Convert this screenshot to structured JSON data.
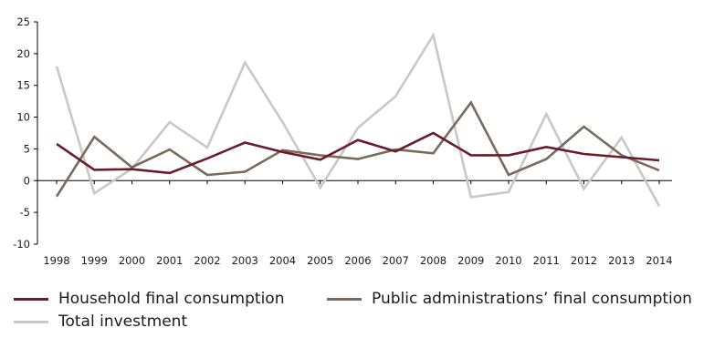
{
  "chart_data": {
    "type": "line",
    "x": [
      "1998",
      "1999",
      "2000",
      "2001",
      "2002",
      "2003",
      "2004",
      "2005",
      "2006",
      "2007",
      "2008",
      "2009",
      "2010",
      "2011",
      "2012",
      "2013",
      "2014"
    ],
    "ylim": [
      -10,
      25
    ],
    "yticks": [
      25,
      20,
      15,
      10,
      5,
      0,
      -5,
      -10
    ],
    "ytick_labels": [
      "25",
      "20",
      "15",
      "10",
      "5",
      "0",
      "-5",
      "-10"
    ],
    "grid": false,
    "legend_position": "bottom",
    "series": [
      {
        "name": "Household final consumption",
        "color": "#6b1b2b",
        "values": [
          5.8,
          1.7,
          1.8,
          1.2,
          3.5,
          6.0,
          4.5,
          3.3,
          6.4,
          4.6,
          7.5,
          4.0,
          4.0,
          5.3,
          4.2,
          3.7,
          3.2
        ]
      },
      {
        "name": "Public administrations’ final consumption",
        "color": "#7a6a5c",
        "values": [
          -2.5,
          6.9,
          2.1,
          4.9,
          0.9,
          1.4,
          4.8,
          4.0,
          3.4,
          4.9,
          4.3,
          12.3,
          0.9,
          3.4,
          8.5,
          4.0,
          1.6
        ]
      },
      {
        "name": "Total investment",
        "color": "#c8c8c8",
        "values": [
          18.0,
          -2.0,
          1.9,
          9.2,
          5.2,
          18.6,
          9.2,
          -1.1,
          8.3,
          13.3,
          22.9,
          -2.6,
          -1.8,
          10.5,
          -1.3,
          6.8,
          -4.0
        ]
      }
    ]
  }
}
